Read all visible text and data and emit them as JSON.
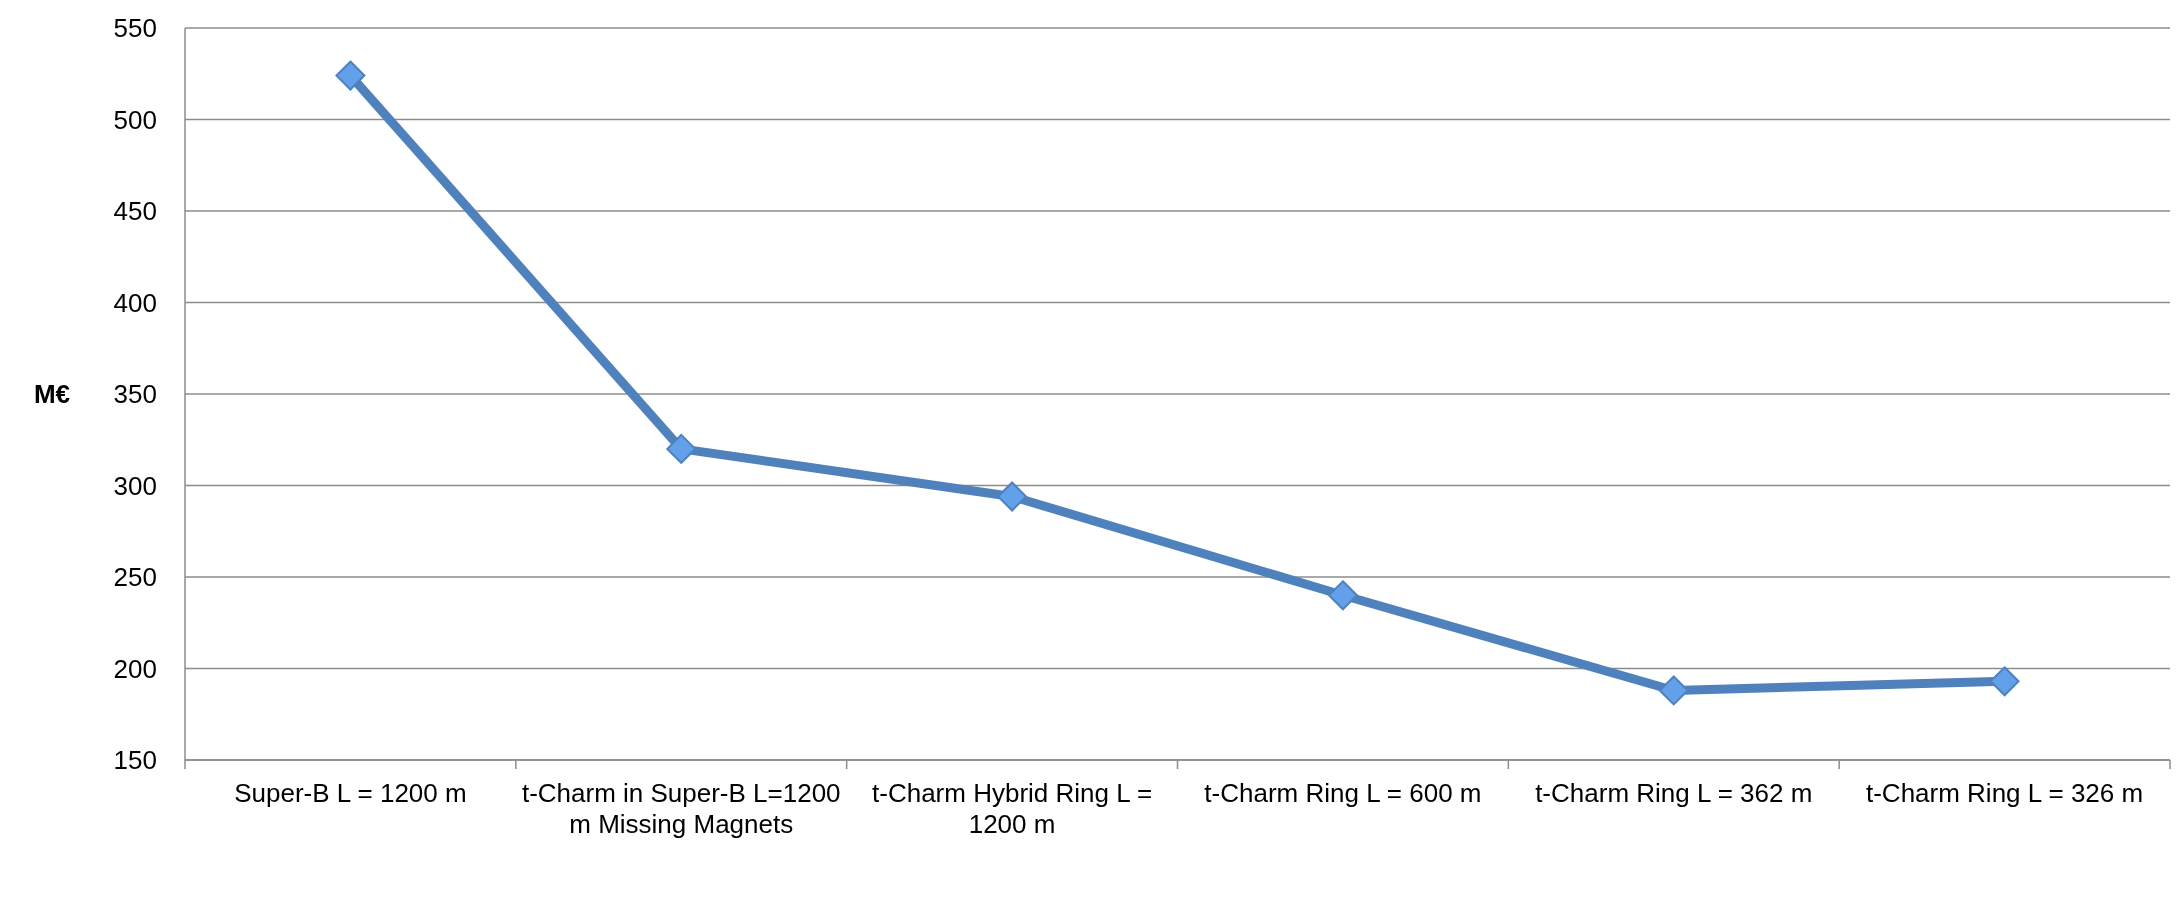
{
  "chart_data": {
    "type": "line",
    "ylabel": "M€",
    "categories": [
      "Super-B L = 1200 m",
      "t-Charm in Super-B L=1200 m Missing Magnets",
      "t-Charm Hybrid Ring L = 1200 m",
      "t-Charm Ring L = 600 m",
      "t-Charm Ring L = 362 m",
      "t-Charm Ring L = 326 m"
    ],
    "series": [
      {
        "color": "#4f81bd",
        "values": [
          524,
          320,
          294,
          240,
          188,
          193
        ]
      }
    ],
    "ylim": [
      150,
      550
    ],
    "yticks": [
      150,
      200,
      250,
      300,
      350,
      400,
      450,
      500,
      550
    ],
    "grid": "y",
    "marker": "diamond",
    "line_style": "solid"
  }
}
